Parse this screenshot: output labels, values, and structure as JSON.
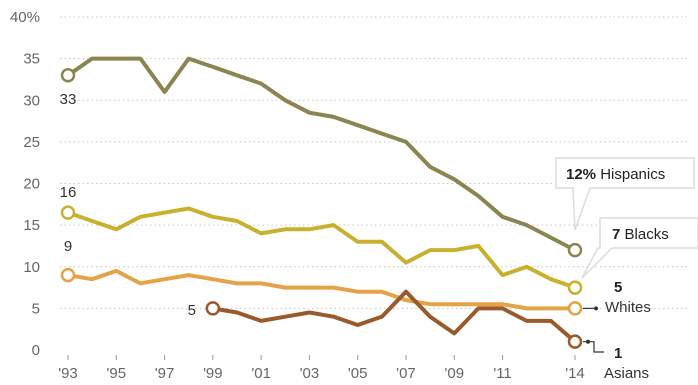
{
  "chart_data": {
    "type": "line",
    "ylim": [
      0,
      40
    ],
    "y_ticks": [
      "0",
      "5",
      "10",
      "15",
      "20",
      "25",
      "30",
      "35",
      "40%"
    ],
    "x_ticks": [
      {
        "x": 1993,
        "label": "'93"
      },
      {
        "x": 1995,
        "label": "'95"
      },
      {
        "x": 1997,
        "label": "'97"
      },
      {
        "x": 1999,
        "label": "'99"
      },
      {
        "x": 2001,
        "label": "'01"
      },
      {
        "x": 2003,
        "label": "'03"
      },
      {
        "x": 2005,
        "label": "'05"
      },
      {
        "x": 2007,
        "label": "'07"
      },
      {
        "x": 2009,
        "label": "'09"
      },
      {
        "x": 2011,
        "label": "'11"
      },
      {
        "x": 2014,
        "label": "'14"
      }
    ],
    "grid": "horizontal dotted",
    "series": [
      {
        "key": "hispanics",
        "color": "#8b8551",
        "x": [
          1993,
          1994,
          1995,
          1996,
          1997,
          1998,
          1999,
          2000,
          2001,
          2002,
          2003,
          2004,
          2005,
          2006,
          2007,
          2008,
          2009,
          2010,
          2011,
          2012,
          2013,
          2014
        ],
        "values": [
          33,
          35,
          35,
          35,
          31,
          35,
          34,
          33,
          32,
          30,
          28.5,
          28,
          27,
          26,
          25,
          22,
          20.5,
          18.5,
          16,
          15,
          13.5,
          12
        ],
        "start_label": "33",
        "end_label_bold": "12%",
        "end_label": "Hispanics"
      },
      {
        "key": "blacks",
        "color": "#c8b12f",
        "x": [
          1993,
          1994,
          1995,
          1996,
          1997,
          1998,
          1999,
          2000,
          2001,
          2002,
          2003,
          2004,
          2005,
          2006,
          2007,
          2008,
          2009,
          2010,
          2011,
          2012,
          2013,
          2014
        ],
        "values": [
          16.5,
          15.5,
          14.5,
          16,
          16.5,
          17,
          16,
          15.5,
          14,
          14.5,
          14.5,
          15,
          13,
          13,
          10.5,
          12,
          12,
          12.5,
          9,
          10,
          8.5,
          7.5
        ],
        "start_label": "16",
        "end_label_bold": "7",
        "end_label": "Blacks"
      },
      {
        "key": "whites",
        "color": "#e4a349",
        "x": [
          1993,
          1994,
          1995,
          1996,
          1997,
          1998,
          1999,
          2000,
          2001,
          2002,
          2003,
          2004,
          2005,
          2006,
          2007,
          2008,
          2009,
          2010,
          2011,
          2012,
          2013,
          2014
        ],
        "values": [
          9,
          8.5,
          9.5,
          8,
          8.5,
          9,
          8.5,
          8,
          8,
          7.5,
          7.5,
          7.5,
          7,
          7,
          6,
          5.5,
          5.5,
          5.5,
          5.5,
          5,
          5,
          5
        ],
        "start_label": "9",
        "end_label_bold": "5",
        "end_label": "Whites"
      },
      {
        "key": "asians",
        "color": "#9a5a2b",
        "x": [
          1999,
          2000,
          2001,
          2002,
          2003,
          2004,
          2005,
          2006,
          2007,
          2008,
          2009,
          2010,
          2011,
          2012,
          2013,
          2014
        ],
        "values": [
          5,
          4.5,
          3.5,
          4,
          4.5,
          4,
          3,
          4,
          7,
          4,
          2,
          5,
          5,
          3.5,
          3.5,
          1
        ],
        "start_label": "5",
        "end_label_bold": "1",
        "end_label": "Asians"
      }
    ]
  }
}
